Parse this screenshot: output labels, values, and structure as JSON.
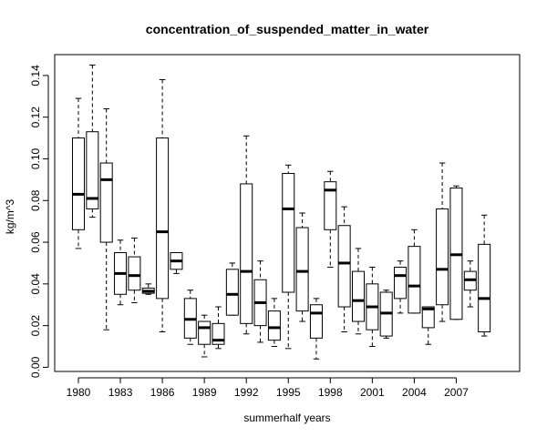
{
  "chart_data": {
    "type": "boxplot",
    "title": "concentration_of_suspended_matter_in_water",
    "xlabel": "summerhalf years",
    "ylabel": "kg/m^3",
    "ylim": [
      -0.002,
      0.15
    ],
    "y_ticks": [
      0.0,
      0.02,
      0.04,
      0.06,
      0.08,
      0.1,
      0.12,
      0.14
    ],
    "y_tick_labels": [
      "0.00",
      "0.02",
      "0.04",
      "0.06",
      "0.08",
      "0.10",
      "0.12",
      "0.14"
    ],
    "x_tick_labels": [
      {
        "year": 1980,
        "label": "1980"
      },
      {
        "year": 1983,
        "label": "1983"
      },
      {
        "year": 1986,
        "label": "1986"
      },
      {
        "year": 1989,
        "label": "1989"
      },
      {
        "year": 1992,
        "label": "1992"
      },
      {
        "year": 1995,
        "label": "1995"
      },
      {
        "year": 1998,
        "label": "1998"
      },
      {
        "year": 2001,
        "label": "2001"
      },
      {
        "year": 2004,
        "label": "2004"
      },
      {
        "year": 2007,
        "label": "2007"
      }
    ],
    "boxes": [
      {
        "year": 1980,
        "min": 0.057,
        "q1": 0.066,
        "median": 0.083,
        "q3": 0.11,
        "max": 0.129
      },
      {
        "year": 1981,
        "min": 0.072,
        "q1": 0.076,
        "median": 0.081,
        "q3": 0.113,
        "max": 0.145
      },
      {
        "year": 1982,
        "min": 0.018,
        "q1": 0.06,
        "median": 0.09,
        "q3": 0.098,
        "max": 0.124
      },
      {
        "year": 1983,
        "min": 0.03,
        "q1": 0.035,
        "median": 0.045,
        "q3": 0.055,
        "max": 0.061
      },
      {
        "year": 1984,
        "min": 0.031,
        "q1": 0.037,
        "median": 0.044,
        "q3": 0.053,
        "max": 0.062
      },
      {
        "year": 1985,
        "min": 0.035,
        "q1": 0.0355,
        "median": 0.0365,
        "q3": 0.038,
        "max": 0.04
      },
      {
        "year": 1986,
        "min": 0.017,
        "q1": 0.033,
        "median": 0.065,
        "q3": 0.11,
        "max": 0.138
      },
      {
        "year": 1987,
        "min": 0.045,
        "q1": 0.047,
        "median": 0.051,
        "q3": 0.055,
        "max": 0.055
      },
      {
        "year": 1988,
        "min": 0.011,
        "q1": 0.014,
        "median": 0.023,
        "q3": 0.033,
        "max": 0.037
      },
      {
        "year": 1989,
        "min": 0.005,
        "q1": 0.011,
        "median": 0.019,
        "q3": 0.022,
        "max": 0.025
      },
      {
        "year": 1990,
        "min": 0.009,
        "q1": 0.011,
        "median": 0.013,
        "q3": 0.021,
        "max": 0.029
      },
      {
        "year": 1991,
        "min": 0.025,
        "q1": 0.025,
        "median": 0.035,
        "q3": 0.047,
        "max": 0.05
      },
      {
        "year": 1992,
        "min": 0.016,
        "q1": 0.021,
        "median": 0.046,
        "q3": 0.088,
        "max": 0.111
      },
      {
        "year": 1993,
        "min": 0.012,
        "q1": 0.02,
        "median": 0.031,
        "q3": 0.042,
        "max": 0.051
      },
      {
        "year": 1994,
        "min": 0.01,
        "q1": 0.013,
        "median": 0.019,
        "q3": 0.027,
        "max": 0.033
      },
      {
        "year": 1995,
        "min": 0.009,
        "q1": 0.036,
        "median": 0.076,
        "q3": 0.093,
        "max": 0.097
      },
      {
        "year": 1996,
        "min": 0.022,
        "q1": 0.027,
        "median": 0.046,
        "q3": 0.067,
        "max": 0.074
      },
      {
        "year": 1997,
        "min": 0.004,
        "q1": 0.014,
        "median": 0.026,
        "q3": 0.03,
        "max": 0.033
      },
      {
        "year": 1998,
        "min": 0.048,
        "q1": 0.066,
        "median": 0.085,
        "q3": 0.089,
        "max": 0.094
      },
      {
        "year": 1999,
        "min": 0.017,
        "q1": 0.029,
        "median": 0.05,
        "q3": 0.068,
        "max": 0.077
      },
      {
        "year": 2000,
        "min": 0.016,
        "q1": 0.022,
        "median": 0.032,
        "q3": 0.046,
        "max": 0.057
      },
      {
        "year": 2001,
        "min": 0.01,
        "q1": 0.018,
        "median": 0.029,
        "q3": 0.04,
        "max": 0.048
      },
      {
        "year": 2002,
        "min": 0.014,
        "q1": 0.015,
        "median": 0.026,
        "q3": 0.036,
        "max": 0.037
      },
      {
        "year": 2003,
        "min": 0.026,
        "q1": 0.033,
        "median": 0.044,
        "q3": 0.048,
        "max": 0.051
      },
      {
        "year": 2004,
        "min": 0.026,
        "q1": 0.026,
        "median": 0.039,
        "q3": 0.058,
        "max": 0.066
      },
      {
        "year": 2005,
        "min": 0.011,
        "q1": 0.019,
        "median": 0.028,
        "q3": 0.029,
        "max": 0.029
      },
      {
        "year": 2006,
        "min": 0.022,
        "q1": 0.03,
        "median": 0.047,
        "q3": 0.076,
        "max": 0.098
      },
      {
        "year": 2007,
        "min": 0.023,
        "q1": 0.023,
        "median": 0.054,
        "q3": 0.086,
        "max": 0.087
      },
      {
        "year": 2008,
        "min": 0.029,
        "q1": 0.037,
        "median": 0.042,
        "q3": 0.046,
        "max": 0.051
      },
      {
        "year": 2009,
        "min": 0.015,
        "q1": 0.017,
        "median": 0.033,
        "q3": 0.059,
        "max": 0.073
      }
    ],
    "grid": false,
    "legend": "none",
    "colors": {
      "box_fill": "#ffffff",
      "stroke": "#000000",
      "background": "#ffffff"
    }
  }
}
